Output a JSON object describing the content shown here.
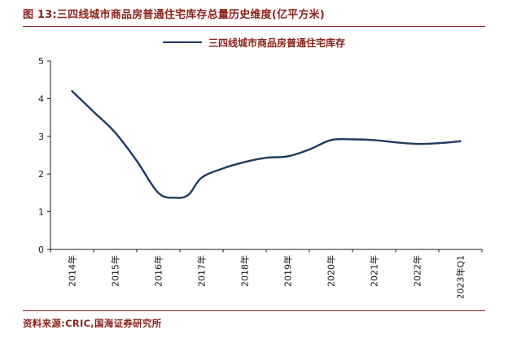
{
  "header": {
    "title": "图 13:三四线城市商品房普通住宅库存总量历史维度(亿平方米)"
  },
  "legend": {
    "label": "三四线城市商品房普通住宅库存"
  },
  "footer": {
    "source": "资料来源:CRIC,国海证券研究所"
  },
  "colors": {
    "accent_red": "#8b231c",
    "line_navy": "#1f3b63",
    "axis": "#1a1a1a",
    "tick_text": "#1a1a1a"
  },
  "chart_data": {
    "type": "line",
    "title": "三四线城市商品房普通住宅库存总量历史维度(亿平方米)",
    "xlabel": "",
    "ylabel": "",
    "ylim": [
      0,
      5
    ],
    "yticks": [
      0,
      1,
      2,
      3,
      4,
      5
    ],
    "grid": false,
    "legend_position": "top-center",
    "x_unit": "category_index_center",
    "categories": [
      "2014年",
      "2015年",
      "2016年",
      "2017年",
      "2018年",
      "2019年",
      "2020年",
      "2021年",
      "2022年",
      "2023年Q1"
    ],
    "series": [
      {
        "name": "三四线城市商品房普通住宅库存",
        "color": "#1f3b63",
        "points": [
          {
            "x": 0.0,
            "y": 4.2
          },
          {
            "x": 0.5,
            "y": 3.65
          },
          {
            "x": 1.0,
            "y": 3.1
          },
          {
            "x": 1.5,
            "y": 2.35
          },
          {
            "x": 2.0,
            "y": 1.5
          },
          {
            "x": 2.4,
            "y": 1.37
          },
          {
            "x": 2.7,
            "y": 1.45
          },
          {
            "x": 3.0,
            "y": 1.9
          },
          {
            "x": 3.5,
            "y": 2.15
          },
          {
            "x": 4.0,
            "y": 2.32
          },
          {
            "x": 4.5,
            "y": 2.43
          },
          {
            "x": 5.0,
            "y": 2.47
          },
          {
            "x": 5.5,
            "y": 2.65
          },
          {
            "x": 6.0,
            "y": 2.9
          },
          {
            "x": 6.5,
            "y": 2.92
          },
          {
            "x": 7.0,
            "y": 2.9
          },
          {
            "x": 7.5,
            "y": 2.84
          },
          {
            "x": 8.0,
            "y": 2.8
          },
          {
            "x": 8.5,
            "y": 2.82
          },
          {
            "x": 9.0,
            "y": 2.87
          }
        ]
      }
    ]
  }
}
